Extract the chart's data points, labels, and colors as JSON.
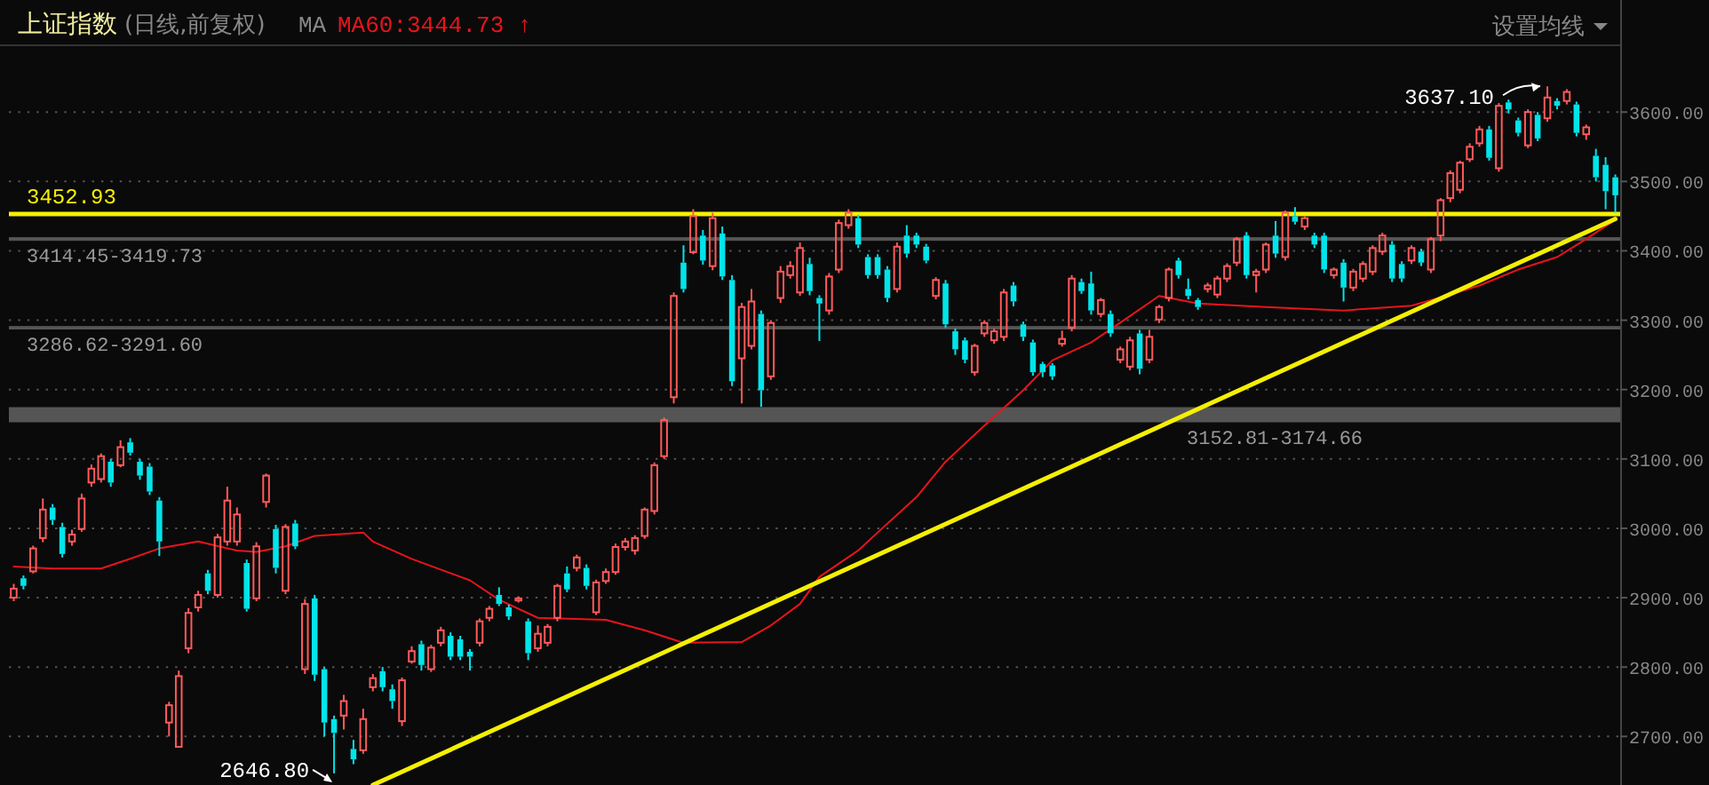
{
  "chart_data": {
    "type": "candlestick",
    "title": "上证指数",
    "subtitle": "(日线,前复权)",
    "categories": [
      null,
      null,
      null,
      null,
      null,
      null,
      null,
      null,
      null,
      null,
      null,
      null,
      null,
      null,
      null,
      null,
      null,
      null,
      null,
      null,
      null,
      null,
      null,
      null,
      null,
      null,
      null,
      null,
      null,
      null,
      null,
      null,
      null,
      null,
      null,
      null,
      null,
      null,
      null,
      null,
      null,
      null,
      null,
      null,
      null,
      null,
      null,
      null,
      null,
      null,
      null,
      null,
      null,
      null,
      null,
      null,
      null,
      null,
      null,
      null,
      null,
      null,
      null,
      null,
      null,
      null,
      null,
      null,
      null,
      null,
      null,
      null,
      null,
      null,
      null,
      null,
      null,
      null,
      null,
      null,
      null,
      null,
      null,
      null,
      null,
      null,
      null,
      null,
      null,
      null,
      null,
      null,
      null,
      null,
      null,
      null,
      null,
      null,
      null,
      null,
      null,
      null,
      null,
      null,
      null,
      null,
      null,
      null,
      null,
      null,
      null,
      null,
      null,
      null,
      null,
      null,
      null,
      null,
      null,
      null,
      null,
      null,
      null,
      null,
      null,
      null,
      null,
      null,
      null,
      null,
      null,
      null,
      null,
      null,
      null,
      null,
      null,
      null,
      null,
      null,
      null,
      null,
      null,
      null,
      null,
      null,
      null,
      null,
      null,
      null,
      null,
      null,
      null,
      null,
      null,
      null,
      null,
      null,
      null,
      null,
      null,
      null,
      null,
      null,
      null,
      null
    ],
    "ohlc": [
      [
        2900,
        2920,
        2895,
        2913
      ],
      [
        2928,
        2932,
        2912,
        2917
      ],
      [
        2938,
        2975,
        2935,
        2971
      ],
      [
        2986,
        3043,
        2980,
        3027
      ],
      [
        3030,
        3035,
        3005,
        3012
      ],
      [
        3002,
        3008,
        2958,
        2963
      ],
      [
        2981,
        2998,
        2975,
        2991
      ],
      [
        2999,
        3050,
        2995,
        3043
      ],
      [
        3066,
        3092,
        3060,
        3086
      ],
      [
        3071,
        3108,
        3066,
        3104
      ],
      [
        3096,
        3100,
        3060,
        3066
      ],
      [
        3091,
        3127,
        3088,
        3117
      ],
      [
        3124,
        3130,
        3105,
        3109
      ],
      [
        3096,
        3100,
        3070,
        3076
      ],
      [
        3089,
        3094,
        3048,
        3053
      ],
      [
        3040,
        3045,
        2960,
        2981
      ],
      [
        2720,
        2750,
        2700,
        2745
      ],
      [
        2685,
        2795,
        2684,
        2787
      ],
      [
        2827,
        2885,
        2820,
        2878
      ],
      [
        2886,
        2910,
        2880,
        2904
      ],
      [
        2935,
        2940,
        2905,
        2910
      ],
      [
        2904,
        2992,
        2900,
        2987
      ],
      [
        2981,
        3060,
        2975,
        3040
      ],
      [
        2981,
        3030,
        2975,
        3020
      ],
      [
        2950,
        2955,
        2880,
        2884
      ],
      [
        2899,
        2980,
        2895,
        2974
      ],
      [
        3038,
        3079,
        3030,
        3076
      ],
      [
        2999,
        3005,
        2935,
        2943
      ],
      [
        2910,
        3006,
        2905,
        3002
      ],
      [
        3007,
        3012,
        2970,
        2974
      ],
      [
        2797,
        2898,
        2790,
        2891
      ],
      [
        2899,
        2904,
        2780,
        2789
      ],
      [
        2797,
        2800,
        2700,
        2720
      ],
      [
        2725,
        2730,
        2646.8,
        2705
      ],
      [
        2730,
        2760,
        2710,
        2751
      ],
      [
        2682,
        2695,
        2660,
        2667
      ],
      [
        2680,
        2740,
        2675,
        2725
      ],
      [
        2771,
        2790,
        2765,
        2784
      ],
      [
        2794,
        2800,
        2765,
        2771
      ],
      [
        2768,
        2775,
        2740,
        2751
      ],
      [
        2722,
        2785,
        2715,
        2781
      ],
      [
        2808,
        2830,
        2805,
        2823
      ],
      [
        2833,
        2838,
        2795,
        2803
      ],
      [
        2797,
        2832,
        2793,
        2828
      ],
      [
        2835,
        2858,
        2830,
        2853
      ],
      [
        2845,
        2850,
        2810,
        2815
      ],
      [
        2840,
        2845,
        2810,
        2815
      ],
      [
        2822,
        2826,
        2795,
        2815
      ],
      [
        2835,
        2870,
        2830,
        2866
      ],
      [
        2871,
        2888,
        2866,
        2884
      ],
      [
        2904,
        2915,
        2888,
        2891
      ],
      [
        2886,
        2890,
        2868,
        2873
      ],
      [
        2896,
        2902,
        2893,
        2899
      ],
      [
        2866,
        2870,
        2810,
        2820
      ],
      [
        2827,
        2860,
        2822,
        2848
      ],
      [
        2835,
        2862,
        2830,
        2858
      ],
      [
        2871,
        2920,
        2866,
        2917
      ],
      [
        2935,
        2945,
        2908,
        2912
      ],
      [
        2943,
        2962,
        2938,
        2958
      ],
      [
        2943,
        2948,
        2912,
        2917
      ],
      [
        2879,
        2926,
        2875,
        2922
      ],
      [
        2924,
        2942,
        2920,
        2937
      ],
      [
        2937,
        2978,
        2933,
        2973
      ],
      [
        2973,
        2986,
        2968,
        2981
      ],
      [
        2968,
        2990,
        2962,
        2986
      ],
      [
        2989,
        3030,
        2985,
        3027
      ],
      [
        3025,
        3095,
        3020,
        3091
      ],
      [
        3104,
        3160,
        3100,
        3156
      ],
      [
        3189,
        3340,
        3180,
        3335
      ],
      [
        3383,
        3408,
        3340,
        3345
      ],
      [
        3398,
        3460,
        3395,
        3450
      ],
      [
        3422,
        3430,
        3380,
        3386
      ],
      [
        3378,
        3455,
        3372,
        3447
      ],
      [
        3425,
        3435,
        3358,
        3363
      ],
      [
        3358,
        3365,
        3205,
        3212
      ],
      [
        3245,
        3325,
        3180,
        3319
      ],
      [
        3263,
        3345,
        3258,
        3327
      ],
      [
        3309,
        3314,
        3175,
        3199
      ],
      [
        3219,
        3300,
        3214,
        3296
      ],
      [
        3332,
        3378,
        3325,
        3370
      ],
      [
        3365,
        3385,
        3360,
        3378
      ],
      [
        3340,
        3412,
        3335,
        3404
      ],
      [
        3381,
        3390,
        3336,
        3342
      ],
      [
        3332,
        3336,
        3270,
        3324
      ],
      [
        3314,
        3368,
        3308,
        3363
      ],
      [
        3373,
        3445,
        3368,
        3440
      ],
      [
        3437,
        3460,
        3432,
        3455
      ],
      [
        3447,
        3452,
        3404,
        3409
      ],
      [
        3391,
        3395,
        3360,
        3365
      ],
      [
        3391,
        3395,
        3360,
        3365
      ],
      [
        3373,
        3378,
        3326,
        3332
      ],
      [
        3345,
        3412,
        3340,
        3406
      ],
      [
        3422,
        3437,
        3390,
        3396
      ],
      [
        3422,
        3426,
        3404,
        3409
      ],
      [
        3406,
        3410,
        3382,
        3386
      ],
      [
        3335,
        3362,
        3330,
        3358
      ],
      [
        3353,
        3358,
        3289,
        3294
      ],
      [
        3284,
        3288,
        3250,
        3258
      ],
      [
        3271,
        3275,
        3238,
        3243
      ],
      [
        3225,
        3266,
        3220,
        3263
      ],
      [
        3281,
        3300,
        3276,
        3296
      ],
      [
        3271,
        3288,
        3266,
        3284
      ],
      [
        3276,
        3345,
        3270,
        3340
      ],
      [
        3350,
        3355,
        3320,
        3327
      ],
      [
        3294,
        3298,
        3270,
        3276
      ],
      [
        3268,
        3272,
        3220,
        3225
      ],
      [
        3237,
        3240,
        3218,
        3225
      ],
      [
        3235,
        3238,
        3214,
        3219
      ],
      [
        3266,
        3285,
        3262,
        3273
      ],
      [
        3289,
        3365,
        3284,
        3360
      ],
      [
        3355,
        3360,
        3338,
        3342
      ],
      [
        3353,
        3370,
        3308,
        3314
      ],
      [
        3309,
        3332,
        3304,
        3329
      ],
      [
        3309,
        3314,
        3276,
        3281
      ],
      [
        3243,
        3262,
        3238,
        3258
      ],
      [
        3233,
        3276,
        3228,
        3271
      ],
      [
        3281,
        3286,
        3222,
        3230
      ],
      [
        3243,
        3286,
        3238,
        3276
      ],
      [
        3301,
        3322,
        3296,
        3319
      ],
      [
        3332,
        3376,
        3327,
        3373
      ],
      [
        3386,
        3390,
        3360,
        3365
      ],
      [
        3345,
        3360,
        3330,
        3335
      ],
      [
        3329,
        3332,
        3315,
        3319
      ],
      [
        3345,
        3354,
        3340,
        3350
      ],
      [
        3337,
        3364,
        3332,
        3360
      ],
      [
        3360,
        3382,
        3355,
        3378
      ],
      [
        3383,
        3420,
        3378,
        3417
      ],
      [
        3422,
        3427,
        3360,
        3365
      ],
      [
        3365,
        3374,
        3340,
        3370
      ],
      [
        3373,
        3412,
        3368,
        3409
      ],
      [
        3422,
        3443,
        3390,
        3396
      ],
      [
        3391,
        3458,
        3386,
        3455
      ],
      [
        3450,
        3463,
        3438,
        3442
      ],
      [
        3435,
        3450,
        3430,
        3447
      ],
      [
        3422,
        3426,
        3404,
        3409
      ],
      [
        3422,
        3426,
        3368,
        3373
      ],
      [
        3365,
        3376,
        3360,
        3373
      ],
      [
        3383,
        3388,
        3327,
        3347
      ],
      [
        3347,
        3374,
        3342,
        3370
      ],
      [
        3360,
        3385,
        3355,
        3381
      ],
      [
        3370,
        3408,
        3365,
        3404
      ],
      [
        3399,
        3426,
        3394,
        3422
      ],
      [
        3409,
        3414,
        3355,
        3360
      ],
      [
        3381,
        3385,
        3355,
        3360
      ],
      [
        3386,
        3408,
        3381,
        3404
      ],
      [
        3399,
        3403,
        3378,
        3383
      ],
      [
        3373,
        3420,
        3368,
        3417
      ],
      [
        3422,
        3476,
        3414,
        3473
      ],
      [
        3476,
        3516,
        3470,
        3512
      ],
      [
        3488,
        3530,
        3483,
        3527
      ],
      [
        3532,
        3555,
        3528,
        3550
      ],
      [
        3555,
        3580,
        3550,
        3575
      ],
      [
        3575,
        3580,
        3530,
        3534
      ],
      [
        3519,
        3613,
        3514,
        3609
      ],
      [
        3614,
        3618,
        3598,
        3604
      ],
      [
        3588,
        3592,
        3565,
        3570
      ],
      [
        3552,
        3604,
        3548,
        3600
      ],
      [
        3596,
        3600,
        3558,
        3562
      ],
      [
        3591,
        3637.1,
        3586,
        3621
      ],
      [
        3616,
        3620,
        3604,
        3609
      ],
      [
        3616,
        3633,
        3611,
        3629
      ],
      [
        3611,
        3615,
        3565,
        3570
      ],
      [
        3568,
        3582,
        3560,
        3578
      ],
      [
        3537,
        3547,
        3500,
        3506
      ],
      [
        3524,
        3535,
        3460,
        3486
      ],
      [
        3506,
        3510,
        3455,
        3480
      ]
    ],
    "series": [
      {
        "name": "MA60:3444.73 ↑",
        "type": "line",
        "color": "#e8141c",
        "values": [
          2945,
          null,
          null,
          null,
          2942,
          null,
          null,
          null,
          null,
          2942,
          null,
          null,
          2956,
          null,
          null,
          2971,
          null,
          null,
          null,
          2981,
          null,
          null,
          null,
          2968,
          null,
          2966,
          null,
          null,
          2974,
          null,
          null,
          2989,
          null,
          null,
          null,
          null,
          2994,
          2981,
          null,
          null,
          null,
          2956,
          null,
          null,
          null,
          null,
          null,
          2925,
          null,
          null,
          2897,
          null,
          null,
          null,
          2871,
          null,
          null,
          null,
          null,
          null,
          null,
          2868,
          null,
          null,
          null,
          2853,
          null,
          null,
          null,
          2835,
          null,
          null,
          null,
          null,
          null,
          2836,
          null,
          null,
          2860,
          null,
          null,
          2891,
          null,
          2930,
          null,
          null,
          null,
          2968,
          null,
          2994,
          null,
          null,
          null,
          3045,
          null,
          null,
          3096,
          null,
          null,
          null,
          3148,
          null,
          null,
          null,
          3199,
          null,
          null,
          3242,
          null,
          null,
          null,
          3268,
          null,
          null,
          null,
          3306,
          null,
          null,
          3335,
          null,
          null,
          null,
          3324,
          null,
          null,
          null,
          null,
          null,
          null,
          3319,
          null,
          null,
          null,
          null,
          null,
          null,
          null,
          3314,
          null,
          null,
          null,
          null,
          null,
          null,
          3321,
          null,
          null,
          null,
          3337,
          null,
          null,
          3350,
          null,
          null,
          null,
          3373,
          null,
          null,
          null,
          3391,
          null,
          null,
          3417,
          null,
          null,
          3444.73
        ]
      },
      {
        "type": "line",
        "color": "#f5f000",
        "values": [
          null,
          null,
          null,
          null,
          null,
          null,
          null,
          null,
          null,
          null,
          null,
          null,
          null,
          null,
          null,
          null,
          null,
          null,
          null,
          null,
          null,
          null,
          null,
          null,
          null,
          null,
          null,
          null,
          null,
          null,
          null,
          null,
          null,
          null,
          null,
          null,
          null,
          2630,
          null,
          null,
          null,
          null,
          null,
          null,
          null,
          null,
          null,
          null,
          null,
          null,
          null,
          null,
          null,
          null,
          null,
          null,
          null,
          null,
          null,
          null,
          null,
          null,
          null,
          null,
          null,
          null,
          null,
          null,
          null,
          null,
          null,
          null,
          null,
          null,
          null,
          null,
          null,
          null,
          null,
          null,
          null,
          null,
          null,
          null,
          null,
          null,
          null,
          null,
          null,
          null,
          null,
          null,
          null,
          null,
          null,
          null,
          null,
          null,
          null,
          null,
          null,
          null,
          null,
          null,
          null,
          null,
          null,
          null,
          null,
          null,
          null,
          null,
          null,
          null,
          null,
          null,
          null,
          null,
          null,
          null,
          null,
          null,
          null,
          null,
          null,
          null,
          null,
          null,
          null,
          null,
          null,
          null,
          null,
          null,
          null,
          null,
          null,
          null,
          null,
          null,
          null,
          null,
          null,
          null,
          null,
          null,
          null,
          null,
          null,
          null,
          null,
          null,
          null,
          null,
          null,
          null,
          null,
          null,
          null,
          null,
          null,
          null,
          null,
          null,
          null,
          3446
        ]
      }
    ],
    "ylim": [
      2630,
      3695
    ],
    "yticks": [
      {
        "value": 2700,
        "label": "2700.00"
      },
      {
        "value": 2800,
        "label": "2800.00"
      },
      {
        "value": 2900,
        "label": "2900.00"
      },
      {
        "value": 3000,
        "label": "3000.00"
      },
      {
        "value": 3100,
        "label": "3100.00"
      },
      {
        "value": 3200,
        "label": "3200.00"
      },
      {
        "value": 3300,
        "label": "3300.00"
      },
      {
        "value": 3400,
        "label": "3400.00"
      },
      {
        "value": 3500,
        "label": "3500.00"
      },
      {
        "value": 3600,
        "label": "3600.00"
      }
    ],
    "grid": "y",
    "legend": "top left",
    "ref_lines": [
      {
        "axis": "y",
        "value": 3452.93,
        "label": "3452.93",
        "color": "#f5f000"
      }
    ],
    "bands": [
      {
        "axis": "y",
        "from": 3152.81,
        "to": 3174.66,
        "label": "3152.81-3174.66",
        "color": "#555555"
      },
      {
        "axis": "y",
        "from": 3286.62,
        "to": 3291.6,
        "label": "3286.62-3291.60",
        "color": "#555555"
      },
      {
        "axis": "y",
        "from": 3414.45,
        "to": 3419.73,
        "label": "3414.45-3419.73",
        "color": "#555555"
      }
    ],
    "annotations": [
      "MA",
      "设置均线",
      "3637.10",
      "2646.80"
    ]
  }
}
